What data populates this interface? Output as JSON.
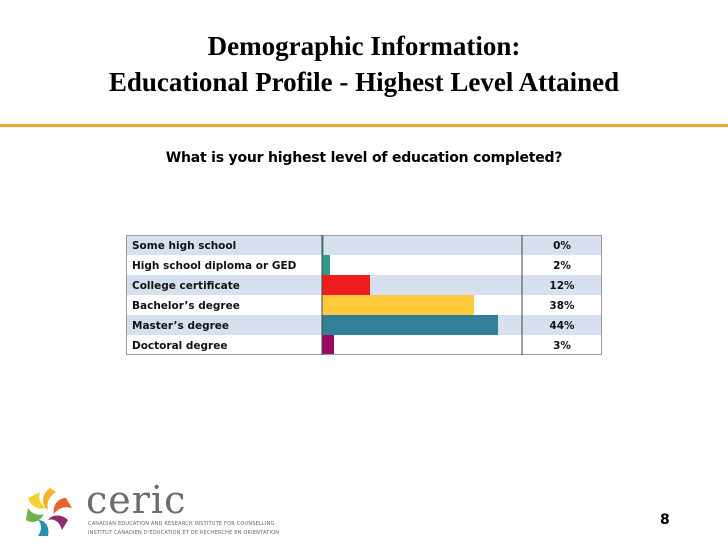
{
  "slide": {
    "title_line1": "Demographic Information:",
    "title_line2": "Educational Profile - Highest Level Attained",
    "question": "What is your highest level of education completed?",
    "page_number": "8",
    "accent_color": "#f0a830"
  },
  "logo": {
    "wordmark": "ceric",
    "line1": "CANADIAN EDUCATION AND RESEARCH INSTITUTE FOR COUNSELLING",
    "line2": "INSTITUT CANADIEN D'ÉDUCATION ET DE RECHERCHE EN ORIENTATION"
  },
  "chart_data": {
    "type": "bar",
    "orientation": "horizontal",
    "categories": [
      "Some high school",
      "High school diploma or GED",
      "College certificate",
      "Bachelor’s degree",
      "Master’s degree",
      "Doctoral degree"
    ],
    "values": [
      0,
      2,
      12,
      38,
      44,
      3
    ],
    "value_labels": [
      "0%",
      "2%",
      "12%",
      "38%",
      "44%",
      "3%"
    ],
    "xlim": [
      0,
      50
    ],
    "row_background": [
      "#d6e0ef",
      "#ffffff",
      "#d6e0ef",
      "#ffffff",
      "#d6e0ef",
      "#ffffff"
    ],
    "bar_colors": [
      "#2e9a8a",
      "#2e9a8a",
      "#ee1c1c",
      "#fec93a",
      "#317f98",
      "#980a64"
    ],
    "grid": false,
    "legend": "none"
  }
}
